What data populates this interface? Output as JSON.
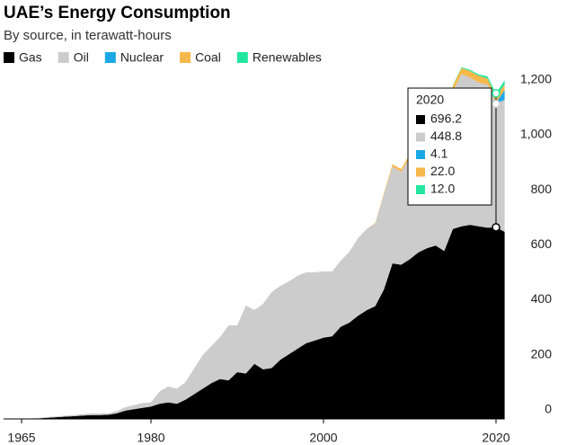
{
  "chart_data": {
    "type": "stacked-area",
    "title": "UAE’s Energy Consumption",
    "subtitle": "By source, in terawatt-hours",
    "x": [
      1965,
      1966,
      1967,
      1968,
      1969,
      1970,
      1971,
      1972,
      1973,
      1974,
      1975,
      1976,
      1977,
      1978,
      1979,
      1980,
      1981,
      1982,
      1983,
      1984,
      1985,
      1986,
      1987,
      1988,
      1989,
      1990,
      1991,
      1992,
      1993,
      1994,
      1995,
      1996,
      1997,
      1998,
      1999,
      2000,
      2001,
      2002,
      2003,
      2004,
      2005,
      2006,
      2007,
      2008,
      2009,
      2010,
      2011,
      2012,
      2013,
      2014,
      2015,
      2016,
      2017,
      2018,
      2019,
      2020,
      2021
    ],
    "xlim": [
      1965,
      2021
    ],
    "xticks": [
      1965,
      1980,
      2000,
      2020
    ],
    "ylim": [
      0,
      1300
    ],
    "yticks": [
      0,
      200,
      400,
      600,
      800,
      {
        "value": 1000,
        "label": "1,000"
      },
      {
        "value": 1200,
        "label": "1,200"
      }
    ],
    "highlight_x": 2020,
    "series": [
      {
        "name": "Gas",
        "color": "#000000",
        "values": [
          0,
          1,
          2,
          4,
          6,
          8,
          10,
          12,
          14,
          14,
          15,
          20,
          30,
          35,
          40,
          45,
          55,
          60,
          55,
          70,
          90,
          110,
          130,
          145,
          140,
          170,
          165,
          200,
          180,
          185,
          215,
          235,
          255,
          275,
          285,
          295,
          300,
          335,
          350,
          375,
          395,
          410,
          470,
          565,
          560,
          580,
          605,
          620,
          630,
          610,
          690,
          700,
          705,
          700,
          695,
          696.2,
          680
        ]
      },
      {
        "name": "Oil",
        "color": "#cccccc",
        "values": [
          0,
          1,
          2,
          3,
          3,
          4,
          4,
          5,
          6,
          6,
          5,
          8,
          12,
          15,
          18,
          15,
          45,
          58,
          55,
          64,
          93,
          122,
          135,
          152,
          200,
          170,
          247,
          196,
          238,
          276,
          269,
          265,
          265,
          258,
          248,
          241,
          236,
          240,
          257,
          282,
          295,
          300,
          345,
          352,
          338,
          369,
          387,
          430,
          425,
          459,
          500,
          553,
          535,
          522,
          520,
          448.8,
          480
        ]
      },
      {
        "name": "Nuclear",
        "color": "#1aa7e6",
        "values": [
          0,
          0,
          0,
          0,
          0,
          0,
          0,
          0,
          0,
          0,
          0,
          0,
          0,
          0,
          0,
          0,
          0,
          0,
          0,
          0,
          0,
          0,
          0,
          0,
          0,
          0,
          0,
          0,
          0,
          0,
          0,
          0,
          0,
          0,
          0,
          0,
          0,
          0,
          0,
          0,
          0,
          0,
          0,
          0,
          0,
          0,
          0,
          0,
          0,
          0,
          0,
          0,
          0,
          0,
          0,
          4.1,
          35
        ]
      },
      {
        "name": "Coal",
        "color": "#f7b84b",
        "values": [
          0,
          0,
          0,
          0,
          0,
          0,
          0,
          0,
          0,
          0,
          0,
          0,
          0,
          0,
          0,
          0,
          0,
          0,
          0,
          0,
          0,
          0,
          0,
          0,
          0,
          0,
          0,
          0,
          0,
          0,
          0,
          0,
          0,
          0,
          0,
          0,
          0,
          0,
          0,
          0,
          0,
          2,
          5,
          8,
          10,
          12,
          14,
          15,
          16,
          18,
          20,
          22,
          24,
          25,
          22,
          22.0,
          20
        ],
        "value_labels": [
          null,
          null,
          null,
          null,
          null,
          null,
          null,
          null,
          null,
          null,
          null,
          null,
          null,
          null,
          null,
          null,
          null,
          null,
          null,
          null,
          null,
          null,
          null,
          null,
          null,
          null,
          null,
          null,
          null,
          null,
          null,
          null,
          null,
          null,
          null,
          null,
          null,
          null,
          null,
          null,
          null,
          null,
          null,
          null,
          null,
          null,
          null,
          null,
          null,
          null,
          null,
          null,
          null,
          null,
          null,
          "22.0",
          null
        ]
      },
      {
        "name": "Renewables",
        "color": "#23e6a0",
        "values": [
          0,
          0,
          0,
          0,
          0,
          0,
          0,
          0,
          0,
          0,
          0,
          0,
          0,
          0,
          0,
          0,
          0,
          0,
          0,
          0,
          0,
          0,
          0,
          0,
          0,
          0,
          0,
          0,
          0,
          0,
          0,
          0,
          0,
          0,
          0,
          0,
          0,
          0,
          0,
          0,
          0,
          0,
          0,
          0,
          0,
          0,
          0,
          0,
          1,
          1,
          2,
          3,
          4,
          5,
          8,
          12.0,
          15
        ],
        "value_labels": [
          null,
          null,
          null,
          null,
          null,
          null,
          null,
          null,
          null,
          null,
          null,
          null,
          null,
          null,
          null,
          null,
          null,
          null,
          null,
          null,
          null,
          null,
          null,
          null,
          null,
          null,
          null,
          null,
          null,
          null,
          null,
          null,
          null,
          null,
          null,
          null,
          null,
          null,
          null,
          null,
          null,
          null,
          null,
          null,
          null,
          null,
          null,
          null,
          null,
          null,
          null,
          null,
          null,
          null,
          null,
          "12.0",
          null
        ]
      }
    ]
  }
}
